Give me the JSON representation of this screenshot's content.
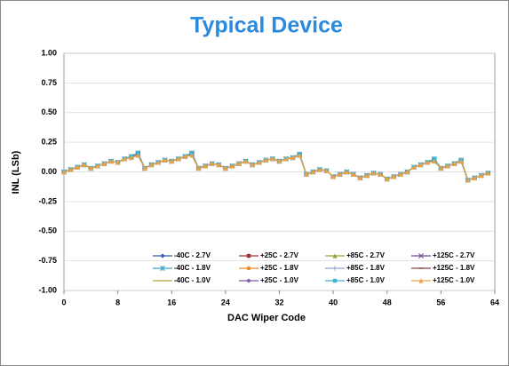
{
  "chart_data": {
    "type": "line",
    "title": "Typical Device",
    "x_label": "DAC Wiper Code",
    "y_label": "INL (LSb)",
    "x": [
      0,
      1,
      2,
      3,
      4,
      5,
      6,
      7,
      8,
      9,
      10,
      11,
      12,
      13,
      14,
      15,
      16,
      17,
      18,
      19,
      20,
      21,
      22,
      23,
      24,
      25,
      26,
      27,
      28,
      29,
      30,
      31,
      32,
      33,
      34,
      35,
      36,
      37,
      38,
      39,
      40,
      41,
      42,
      43,
      44,
      45,
      46,
      47,
      48,
      49,
      50,
      51,
      52,
      53,
      54,
      55,
      56,
      57,
      58,
      59,
      60,
      61,
      62,
      63
    ],
    "xlim": [
      0,
      64
    ],
    "xticks": [
      0,
      8,
      16,
      24,
      32,
      40,
      48,
      56,
      64
    ],
    "ylim": [
      -1,
      1
    ],
    "yticks": [
      {
        "value": -1,
        "label": "-1.00"
      },
      {
        "value": -0.75,
        "label": "-0.75"
      },
      {
        "value": -0.5,
        "label": "-0.50"
      },
      {
        "value": -0.25,
        "label": "-0.25"
      },
      {
        "value": 0,
        "label": "0.00"
      },
      {
        "value": 0.25,
        "label": "0.25"
      },
      {
        "value": 0.5,
        "label": "0.50"
      },
      {
        "value": 0.75,
        "label": "0.75"
      },
      {
        "value": 1,
        "label": "1.00"
      }
    ],
    "grid": true,
    "series": [
      {
        "name": "-40C - 2.7V",
        "color": "#2e5fa8",
        "marker": "diamond",
        "values": [
          0,
          0.02,
          0.04,
          0.06,
          0.03,
          0.05,
          0.07,
          0.09,
          0.08,
          0.11,
          0.13,
          0.15,
          0.03,
          0.06,
          0.08,
          0.1,
          0.09,
          0.11,
          0.13,
          0.15,
          0.03,
          0.05,
          0.07,
          0.06,
          0.03,
          0.05,
          0.07,
          0.09,
          0.06,
          0.08,
          0.1,
          0.11,
          0.09,
          0.11,
          0.12,
          0.14,
          -0.02,
          0,
          0.02,
          0.01,
          -0.04,
          -0.02,
          0,
          -0.02,
          -0.05,
          -0.03,
          -0.01,
          -0.02,
          -0.06,
          -0.04,
          -0.02,
          0,
          0.04,
          0.06,
          0.08,
          0.1,
          0.03,
          0.05,
          0.07,
          0.09,
          -0.07,
          -0.05,
          -0.03,
          -0.01
        ]
      },
      {
        "name": "+25C - 2.7V",
        "color": "#a83232",
        "marker": "square",
        "values": [
          0,
          0.02,
          0.04,
          0.06,
          0.03,
          0.05,
          0.07,
          0.09,
          0.08,
          0.11,
          0.13,
          0.16,
          0.03,
          0.06,
          0.08,
          0.1,
          0.09,
          0.11,
          0.13,
          0.16,
          0.03,
          0.05,
          0.07,
          0.06,
          0.03,
          0.05,
          0.07,
          0.09,
          0.06,
          0.08,
          0.1,
          0.11,
          0.09,
          0.11,
          0.12,
          0.15,
          -0.02,
          0,
          0.02,
          0.01,
          -0.04,
          -0.02,
          0,
          -0.02,
          -0.05,
          -0.03,
          -0.01,
          -0.02,
          -0.06,
          -0.04,
          -0.02,
          0,
          0.04,
          0.06,
          0.08,
          0.11,
          0.03,
          0.05,
          0.07,
          0.1,
          -0.07,
          -0.05,
          -0.03,
          -0.01
        ]
      },
      {
        "name": "+85C - 2.7V",
        "color": "#8aa83c",
        "marker": "triangle",
        "values": [
          0,
          0.02,
          0.04,
          0.06,
          0.03,
          0.05,
          0.07,
          0.09,
          0.08,
          0.11,
          0.12,
          0.14,
          0.03,
          0.06,
          0.08,
          0.1,
          0.09,
          0.11,
          0.13,
          0.14,
          0.03,
          0.05,
          0.07,
          0.06,
          0.03,
          0.05,
          0.07,
          0.09,
          0.06,
          0.08,
          0.1,
          0.11,
          0.09,
          0.11,
          0.12,
          0.14,
          -0.02,
          0,
          0.02,
          0.01,
          -0.04,
          -0.02,
          0,
          -0.02,
          -0.05,
          -0.03,
          -0.01,
          -0.02,
          -0.06,
          -0.04,
          -0.02,
          0,
          0.04,
          0.06,
          0.08,
          0.09,
          0.03,
          0.05,
          0.07,
          0.09,
          -0.07,
          -0.05,
          -0.03,
          -0.01
        ]
      },
      {
        "name": "+125C - 2.7V",
        "color": "#6a4a9c",
        "marker": "x",
        "values": [
          0,
          0.02,
          0.04,
          0.06,
          0.03,
          0.05,
          0.07,
          0.09,
          0.08,
          0.11,
          0.13,
          0.15,
          0.03,
          0.06,
          0.08,
          0.1,
          0.09,
          0.11,
          0.13,
          0.15,
          0.03,
          0.05,
          0.07,
          0.06,
          0.03,
          0.05,
          0.07,
          0.09,
          0.06,
          0.08,
          0.1,
          0.11,
          0.09,
          0.11,
          0.12,
          0.14,
          -0.02,
          0,
          0.02,
          0.01,
          -0.04,
          -0.02,
          0,
          -0.02,
          -0.05,
          -0.03,
          -0.01,
          -0.02,
          -0.06,
          -0.04,
          -0.02,
          0,
          0.04,
          0.06,
          0.08,
          0.1,
          0.03,
          0.05,
          0.07,
          0.09,
          -0.07,
          -0.05,
          -0.03,
          -0.01
        ]
      },
      {
        "name": "-40C - 1.8V",
        "color": "#3ca8c8",
        "marker": "star",
        "values": [
          0,
          0.02,
          0.04,
          0.06,
          0.03,
          0.05,
          0.07,
          0.09,
          0.08,
          0.11,
          0.13,
          0.16,
          0.03,
          0.06,
          0.08,
          0.1,
          0.09,
          0.11,
          0.13,
          0.16,
          0.03,
          0.05,
          0.07,
          0.06,
          0.03,
          0.05,
          0.07,
          0.09,
          0.06,
          0.08,
          0.1,
          0.11,
          0.09,
          0.11,
          0.12,
          0.15,
          -0.02,
          0,
          0.02,
          0.01,
          -0.04,
          -0.02,
          0,
          -0.02,
          -0.05,
          -0.03,
          -0.01,
          -0.02,
          -0.06,
          -0.04,
          -0.02,
          0,
          0.04,
          0.06,
          0.08,
          0.11,
          0.03,
          0.05,
          0.07,
          0.1,
          -0.07,
          -0.05,
          -0.03,
          -0.01
        ]
      },
      {
        "name": "+25C - 1.8V",
        "color": "#e8892c",
        "marker": "circle",
        "values": [
          0,
          0.02,
          0.04,
          0.06,
          0.03,
          0.05,
          0.07,
          0.09,
          0.08,
          0.11,
          0.12,
          0.14,
          0.03,
          0.06,
          0.08,
          0.1,
          0.09,
          0.11,
          0.13,
          0.14,
          0.03,
          0.05,
          0.07,
          0.06,
          0.03,
          0.05,
          0.07,
          0.09,
          0.06,
          0.08,
          0.1,
          0.11,
          0.09,
          0.11,
          0.12,
          0.14,
          -0.02,
          0,
          0.02,
          0.01,
          -0.04,
          -0.02,
          0,
          -0.02,
          -0.05,
          -0.03,
          -0.01,
          -0.02,
          -0.06,
          -0.04,
          -0.02,
          0,
          0.04,
          0.06,
          0.08,
          0.09,
          0.03,
          0.05,
          0.07,
          0.09,
          -0.07,
          -0.05,
          -0.03,
          -0.01
        ]
      },
      {
        "name": "+85C - 1.8V",
        "color": "#8aa8d8",
        "marker": "plus",
        "values": [
          0,
          0.02,
          0.04,
          0.06,
          0.03,
          0.05,
          0.07,
          0.09,
          0.08,
          0.11,
          0.13,
          0.15,
          0.03,
          0.06,
          0.08,
          0.1,
          0.09,
          0.11,
          0.13,
          0.15,
          0.03,
          0.05,
          0.07,
          0.06,
          0.03,
          0.05,
          0.07,
          0.09,
          0.06,
          0.08,
          0.1,
          0.11,
          0.09,
          0.11,
          0.12,
          0.14,
          -0.02,
          0,
          0.02,
          0.01,
          -0.04,
          -0.02,
          0,
          -0.02,
          -0.05,
          -0.03,
          -0.01,
          -0.02,
          -0.06,
          -0.04,
          -0.02,
          0,
          0.04,
          0.06,
          0.08,
          0.1,
          0.03,
          0.05,
          0.07,
          0.09,
          -0.07,
          -0.05,
          -0.03,
          -0.01
        ]
      },
      {
        "name": "+125C - 1.8V",
        "color": "#8c4a3c",
        "marker": "dash",
        "values": [
          0,
          0.02,
          0.04,
          0.06,
          0.03,
          0.05,
          0.07,
          0.09,
          0.08,
          0.11,
          0.13,
          0.16,
          0.03,
          0.06,
          0.08,
          0.1,
          0.09,
          0.11,
          0.13,
          0.16,
          0.03,
          0.05,
          0.07,
          0.06,
          0.03,
          0.05,
          0.07,
          0.09,
          0.06,
          0.08,
          0.1,
          0.11,
          0.09,
          0.11,
          0.12,
          0.15,
          -0.02,
          0,
          0.02,
          0.01,
          -0.04,
          -0.02,
          0,
          -0.02,
          -0.05,
          -0.03,
          -0.01,
          -0.02,
          -0.06,
          -0.04,
          -0.02,
          0,
          0.04,
          0.06,
          0.08,
          0.11,
          0.03,
          0.05,
          0.07,
          0.1,
          -0.07,
          -0.05,
          -0.03,
          -0.01
        ]
      },
      {
        "name": "-40C - 1.0V",
        "color": "#a8a83c",
        "marker": "none",
        "values": [
          0,
          0.02,
          0.04,
          0.06,
          0.03,
          0.05,
          0.07,
          0.09,
          0.08,
          0.11,
          0.12,
          0.14,
          0.03,
          0.06,
          0.08,
          0.1,
          0.09,
          0.11,
          0.13,
          0.14,
          0.03,
          0.05,
          0.07,
          0.06,
          0.03,
          0.05,
          0.07,
          0.09,
          0.06,
          0.08,
          0.1,
          0.11,
          0.09,
          0.11,
          0.12,
          0.14,
          -0.02,
          0,
          0.02,
          0.01,
          -0.04,
          -0.02,
          0,
          -0.02,
          -0.05,
          -0.03,
          -0.01,
          -0.02,
          -0.06,
          -0.04,
          -0.02,
          0,
          0.04,
          0.06,
          0.08,
          0.09,
          0.03,
          0.05,
          0.07,
          0.09,
          -0.07,
          -0.05,
          -0.03,
          -0.01
        ]
      },
      {
        "name": "+25C - 1.0V",
        "color": "#7a5aa8",
        "marker": "diamond",
        "values": [
          0,
          0.02,
          0.04,
          0.06,
          0.03,
          0.05,
          0.07,
          0.09,
          0.08,
          0.11,
          0.13,
          0.15,
          0.03,
          0.06,
          0.08,
          0.1,
          0.09,
          0.11,
          0.13,
          0.15,
          0.03,
          0.05,
          0.07,
          0.06,
          0.03,
          0.05,
          0.07,
          0.09,
          0.06,
          0.08,
          0.1,
          0.11,
          0.09,
          0.11,
          0.12,
          0.14,
          -0.02,
          0,
          0.02,
          0.01,
          -0.04,
          -0.02,
          0,
          -0.02,
          -0.05,
          -0.03,
          -0.01,
          -0.02,
          -0.06,
          -0.04,
          -0.02,
          0,
          0.04,
          0.06,
          0.08,
          0.1,
          0.03,
          0.05,
          0.07,
          0.09,
          -0.07,
          -0.05,
          -0.03,
          -0.01
        ]
      },
      {
        "name": "+85C - 1.0V",
        "color": "#3cb4d0",
        "marker": "square",
        "values": [
          0,
          0.02,
          0.04,
          0.06,
          0.03,
          0.05,
          0.07,
          0.09,
          0.08,
          0.11,
          0.13,
          0.16,
          0.03,
          0.06,
          0.08,
          0.1,
          0.09,
          0.11,
          0.13,
          0.16,
          0.03,
          0.05,
          0.07,
          0.06,
          0.03,
          0.05,
          0.07,
          0.09,
          0.06,
          0.08,
          0.1,
          0.11,
          0.09,
          0.11,
          0.12,
          0.15,
          -0.02,
          0,
          0.02,
          0.01,
          -0.04,
          -0.02,
          0,
          -0.02,
          -0.05,
          -0.03,
          -0.01,
          -0.02,
          -0.06,
          -0.04,
          -0.02,
          0,
          0.04,
          0.06,
          0.08,
          0.11,
          0.03,
          0.05,
          0.07,
          0.1,
          -0.07,
          -0.05,
          -0.03,
          -0.01
        ]
      },
      {
        "name": "+125C - 1.0V",
        "color": "#f0a040",
        "marker": "triangle",
        "values": [
          0,
          0.02,
          0.04,
          0.06,
          0.03,
          0.05,
          0.07,
          0.09,
          0.08,
          0.11,
          0.12,
          0.14,
          0.03,
          0.06,
          0.08,
          0.1,
          0.09,
          0.11,
          0.13,
          0.14,
          0.03,
          0.05,
          0.07,
          0.06,
          0.03,
          0.05,
          0.07,
          0.09,
          0.06,
          0.08,
          0.1,
          0.11,
          0.09,
          0.11,
          0.12,
          0.14,
          -0.02,
          0,
          0.02,
          0.01,
          -0.04,
          -0.02,
          0,
          -0.02,
          -0.05,
          -0.03,
          -0.01,
          -0.02,
          -0.06,
          -0.04,
          -0.02,
          0,
          0.04,
          0.06,
          0.08,
          0.09,
          0.03,
          0.05,
          0.07,
          0.09,
          -0.07,
          -0.05,
          -0.03,
          -0.01
        ]
      }
    ]
  }
}
